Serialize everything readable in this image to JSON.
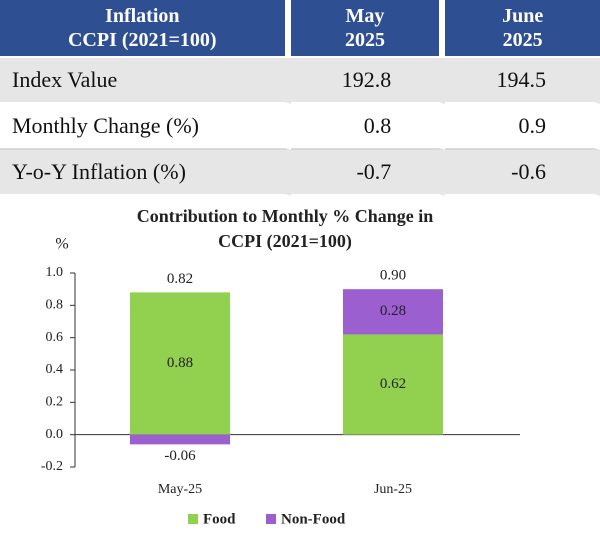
{
  "table": {
    "header": [
      [
        "Inflation",
        "CCPI (2021=100)"
      ],
      [
        "May",
        "2025"
      ],
      [
        "June",
        "2025"
      ]
    ],
    "rows": [
      [
        "Index Value",
        "192.8",
        "194.5"
      ],
      [
        "Monthly Change (%)",
        "0.8",
        "0.9"
      ],
      [
        "Y-o-Y Inflation (%)",
        "-0.7",
        "-0.6"
      ]
    ]
  },
  "chart_data": {
    "type": "stacked_bar",
    "title": [
      "Contribution to Monthly % Change in",
      "CCPI (2021=100)"
    ],
    "y_label": "%",
    "categories": [
      "May-25",
      "Jun-25"
    ],
    "series": [
      {
        "name": "Food",
        "color": "#92d050",
        "values": [
          0.88,
          0.62
        ]
      },
      {
        "name": "Non-Food",
        "color": "#9b5fd0",
        "values": [
          -0.06,
          0.28
        ]
      }
    ],
    "totals": [
      0.82,
      0.9
    ],
    "totals_value_labels": [
      "0.82",
      "0.90"
    ],
    "ylim": [
      -0.2,
      1.0
    ],
    "yticks": [
      1.0,
      0.8,
      0.6,
      0.4,
      0.2,
      {
        "value": 0,
        "label": "0.0"
      },
      -0.2
    ],
    "ytick_labels": [
      "1.0",
      "0.8",
      "0.6",
      "0.4",
      "0.2",
      "0.0",
      "-0.2"
    ],
    "legend": "bottom"
  }
}
